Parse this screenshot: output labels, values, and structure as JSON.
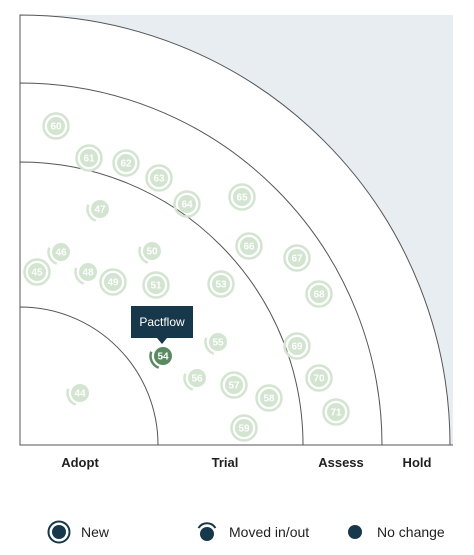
{
  "rings": [
    {
      "name": "Adopt"
    },
    {
      "name": "Trial"
    },
    {
      "name": "Assess"
    },
    {
      "name": "Hold"
    }
  ],
  "colors": {
    "hold_background": "#e8edf1",
    "faded_blip": "#d3e5d1",
    "active_blip": "#5a8a62",
    "tooltip": "#17384a",
    "legend_icon": "#17384a"
  },
  "tooltip": {
    "text": "Pactflow",
    "blip": "54"
  },
  "blips": [
    {
      "id": "60",
      "style": "new"
    },
    {
      "id": "61",
      "style": "new"
    },
    {
      "id": "62",
      "style": "new"
    },
    {
      "id": "63",
      "style": "new"
    },
    {
      "id": "64",
      "style": "new"
    },
    {
      "id": "65",
      "style": "new"
    },
    {
      "id": "47",
      "style": "moved"
    },
    {
      "id": "46",
      "style": "moved"
    },
    {
      "id": "50",
      "style": "moved"
    },
    {
      "id": "66",
      "style": "new"
    },
    {
      "id": "67",
      "style": "new"
    },
    {
      "id": "45",
      "style": "new"
    },
    {
      "id": "48",
      "style": "moved"
    },
    {
      "id": "49",
      "style": "new"
    },
    {
      "id": "51",
      "style": "new"
    },
    {
      "id": "53",
      "style": "new"
    },
    {
      "id": "68",
      "style": "new"
    },
    {
      "id": "69",
      "style": "new"
    },
    {
      "id": "55",
      "style": "moved"
    },
    {
      "id": "54",
      "style": "moved",
      "active": true
    },
    {
      "id": "56",
      "style": "moved"
    },
    {
      "id": "70",
      "style": "new"
    },
    {
      "id": "57",
      "style": "new"
    },
    {
      "id": "44",
      "style": "moved"
    },
    {
      "id": "58",
      "style": "new"
    },
    {
      "id": "71",
      "style": "new"
    },
    {
      "id": "59",
      "style": "new"
    }
  ],
  "legend": [
    {
      "label": "New",
      "icon": "new-blip-icon"
    },
    {
      "label": "Moved in/out",
      "icon": "moved-blip-icon"
    },
    {
      "label": "No change",
      "icon": "no-change-blip-icon"
    }
  ]
}
